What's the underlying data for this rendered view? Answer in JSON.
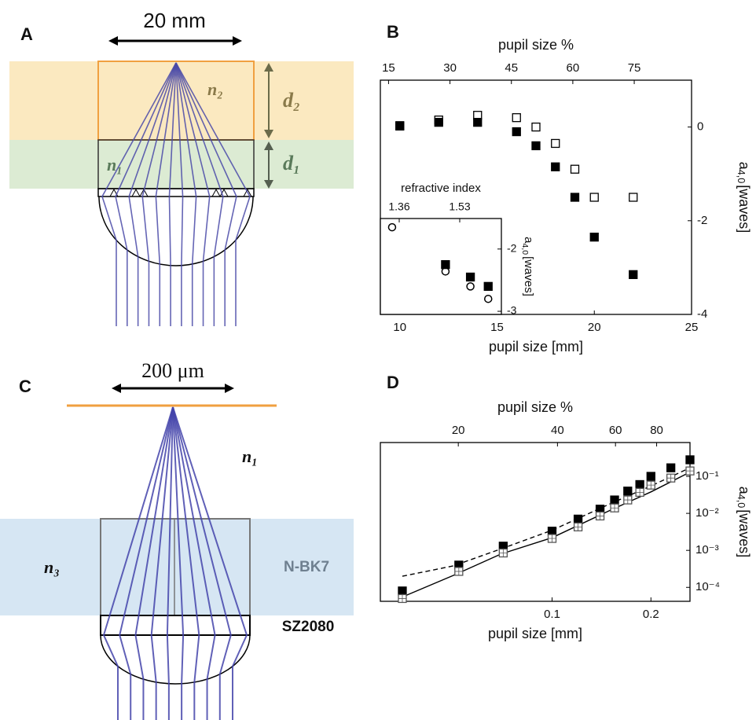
{
  "panels": {
    "A": {
      "label": "A",
      "width_label": "20 mm",
      "n2": "n₂",
      "d2": "d₂",
      "n1": "n₁",
      "d1": "d₁"
    },
    "B": {
      "label": "B"
    },
    "C": {
      "label": "C",
      "width_label": "200 μm",
      "n1": "n₁",
      "n3": "n₃",
      "material_glass": "N-BK7",
      "material_resin": "SZ2080"
    },
    "D": {
      "label": "D"
    }
  },
  "chart_data": [
    {
      "type": "scatter",
      "xlabel": "pupil size [mm]",
      "x2label": "pupil size %",
      "ylabel": [
        "a",
        "4,0",
        "[waves]"
      ],
      "xlim": [
        9,
        25
      ],
      "xticks": [
        10,
        15,
        20,
        25
      ],
      "x2lim": [
        13,
        89
      ],
      "x2ticks": [
        15,
        30,
        45,
        60,
        75
      ],
      "ylim": [
        -4,
        1
      ],
      "yticks": [
        0,
        -2,
        -4
      ],
      "series": [
        {
          "marker": "open-square",
          "color": "#000000",
          "x": [
            10,
            12,
            14,
            16,
            17,
            18,
            19,
            20,
            22
          ],
          "values": [
            0.03,
            0.15,
            0.25,
            0.2,
            0,
            -0.35,
            -0.9,
            -1.5,
            -1.5
          ]
        },
        {
          "marker": "filled-square",
          "color": "#000000",
          "x": [
            10,
            12,
            14,
            16,
            17,
            18,
            19,
            20,
            22
          ],
          "values": [
            0.02,
            0.1,
            0.1,
            -0.1,
            -0.4,
            -0.85,
            -1.5,
            -2.35,
            -3.15
          ]
        }
      ]
    },
    {
      "type": "scatter",
      "xlabel": "refractive index",
      "ylabel": [
        "a",
        "4,0",
        "[waves]"
      ],
      "xlim": [
        1.307,
        1.647
      ],
      "xticks": [
        1.36,
        1.53
      ],
      "ylim": [
        -3.05,
        -1.51
      ],
      "yticks": [
        -2,
        -3
      ],
      "series": [
        {
          "marker": "open-circle",
          "color": "#000000",
          "x": [
            1.34,
            1.49,
            1.56,
            1.61
          ],
          "values": [
            -1.65,
            -2.36,
            -2.6,
            -2.8
          ]
        },
        {
          "marker": "filled-square",
          "color": "#000000",
          "x": [
            1.49,
            1.56,
            1.61
          ],
          "values": [
            -2.25,
            -2.45,
            -2.6
          ]
        }
      ]
    },
    {
      "type": "scatter",
      "xlabel": "pupil size [mm]",
      "x2label": "pupil size %",
      "ylabel": [
        "a",
        "4,0",
        "[waves]"
      ],
      "xscale": "log",
      "yscale": "log",
      "xlim": [
        0.03,
        0.263
      ],
      "xticks": [
        0.1,
        0.2
      ],
      "x2lim": [
        11.6,
        101
      ],
      "x2ticks": [
        20,
        40,
        60,
        80
      ],
      "ylim": [
        4.2e-05,
        0.82
      ],
      "yticks": [
        {
          "value": 0.0001,
          "label": "10⁻⁴"
        },
        {
          "value": 0.001,
          "label": "10⁻³"
        },
        {
          "value": 0.01,
          "label": "10⁻²"
        },
        {
          "value": 0.1,
          "label": "10⁻¹"
        }
      ],
      "series": [
        {
          "style": "dashed",
          "color": "#000000",
          "x": [
            0.035,
            0.05,
            0.07,
            0.1,
            0.15,
            0.2,
            0.263
          ],
          "values": [
            0.0002,
            0.00038,
            0.0011,
            0.0035,
            0.018,
            0.055,
            0.17
          ]
        },
        {
          "style": "solid",
          "color": "#000000",
          "x": [
            0.035,
            0.05,
            0.07,
            0.1,
            0.15,
            0.2,
            0.263
          ],
          "values": [
            5.5e-05,
            0.00021,
            0.0008,
            0.0022,
            0.012,
            0.038,
            0.13
          ]
        },
        {
          "marker": "filled-square",
          "color": "#000000",
          "x": [
            0.035,
            0.052,
            0.071,
            0.1,
            0.12,
            0.14,
            0.155,
            0.17,
            0.185,
            0.2,
            0.23,
            0.263
          ],
          "values": [
            8e-05,
            0.0004,
            0.0013,
            0.0033,
            0.007,
            0.013,
            0.023,
            0.04,
            0.06,
            0.1,
            0.17,
            0.28
          ]
        },
        {
          "marker": "crossed-square",
          "color": "#555555",
          "x": [
            0.035,
            0.052,
            0.071,
            0.1,
            0.12,
            0.14,
            0.155,
            0.17,
            0.185,
            0.2,
            0.23,
            0.263
          ],
          "values": [
            5e-05,
            0.00027,
            0.00085,
            0.0021,
            0.0043,
            0.0085,
            0.014,
            0.023,
            0.037,
            0.058,
            0.09,
            0.14
          ]
        }
      ]
    }
  ]
}
